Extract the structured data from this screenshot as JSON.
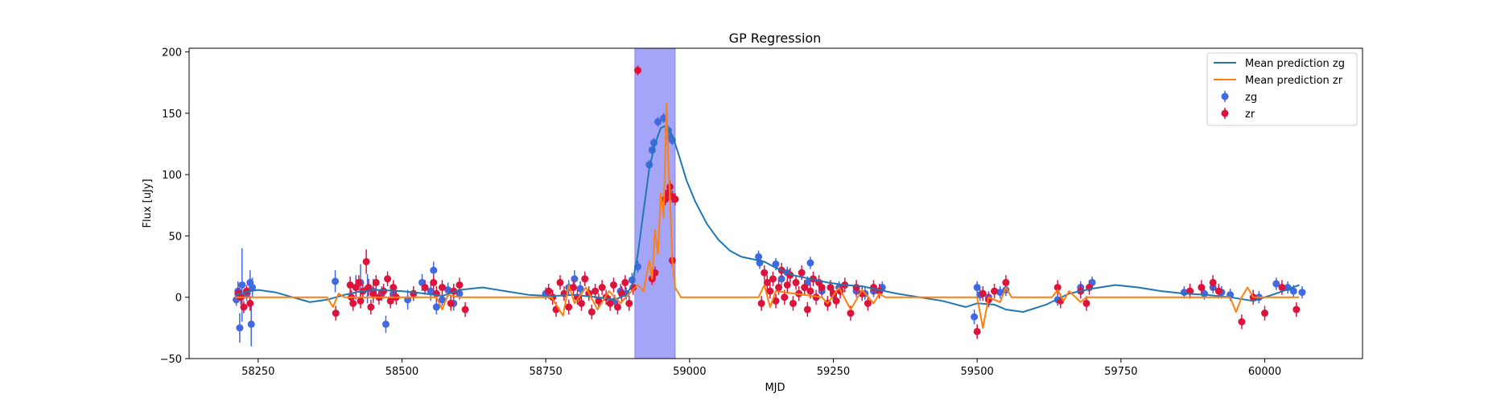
{
  "chart_data": {
    "type": "scatter",
    "title": "GP Regression",
    "xlabel": "MJD",
    "ylabel": "Flux [uJy]",
    "xlim": [
      58130,
      60170
    ],
    "ylim": [
      -50,
      203
    ],
    "xticks": [
      58250,
      58500,
      58750,
      59000,
      59250,
      59500,
      59750,
      60000
    ],
    "yticks": [
      -50,
      0,
      50,
      100,
      150,
      200
    ],
    "grid": false,
    "legend_position": "upper right",
    "shaded_region": {
      "x_start": 58905,
      "x_end": 58975,
      "color": "#a5a5f8"
    },
    "series": [
      {
        "name": "Mean prediction zg",
        "kind": "line",
        "color": "#1f77b4",
        "x": [
          58210,
          58220,
          58235,
          58250,
          58280,
          58310,
          58340,
          58370,
          58400,
          58430,
          58460,
          58500,
          58540,
          58570,
          58600,
          58640,
          58680,
          58720,
          58760,
          58800,
          58840,
          58870,
          58890,
          58900,
          58910,
          58920,
          58930,
          58940,
          58950,
          58960,
          58970,
          58980,
          58995,
          59010,
          59030,
          59050,
          59070,
          59090,
          59110,
          59130,
          59150,
          59180,
          59210,
          59240,
          59270,
          59300,
          59330,
          59360,
          59400,
          59440,
          59480,
          59500,
          59530,
          59550,
          59580,
          59620,
          59660,
          59700,
          59740,
          59780,
          59820,
          59860,
          59900,
          59940,
          59980,
          60020,
          60060
        ],
        "y": [
          2,
          3,
          5,
          6,
          4,
          0,
          -4,
          -2,
          2,
          5,
          6,
          5,
          3,
          1,
          6,
          8,
          5,
          2,
          1,
          2,
          0,
          -2,
          2,
          10,
          35,
          70,
          105,
          125,
          138,
          140,
          132,
          118,
          95,
          78,
          60,
          47,
          38,
          33,
          31,
          29,
          24,
          18,
          15,
          12,
          10,
          9,
          6,
          3,
          0,
          -3,
          -8,
          -5,
          -6,
          -10,
          -12,
          -6,
          3,
          7,
          10,
          8,
          5,
          3,
          2,
          0,
          -3,
          3,
          10
        ]
      },
      {
        "name": "Mean prediction zr",
        "kind": "line",
        "color": "#ff7f0e",
        "x": [
          58210,
          58240,
          58370,
          58380,
          58390,
          58400,
          58560,
          58570,
          58580,
          58600,
          58760,
          58780,
          58790,
          58800,
          58820,
          58840,
          58860,
          58880,
          58895,
          58910,
          58920,
          58930,
          58935,
          58940,
          58945,
          58950,
          58955,
          58960,
          58963,
          58966,
          58970,
          58975,
          58985,
          58995,
          59010,
          59120,
          59130,
          59140,
          59150,
          59230,
          59240,
          59260,
          59280,
          59300,
          59320,
          59330,
          59340,
          59360,
          59500,
          59510,
          59520,
          59540,
          59550,
          59560,
          59630,
          59640,
          59650,
          59660,
          59680,
          59690,
          59700,
          59940,
          59950,
          59960,
          59970,
          59980,
          60060
        ],
        "y": [
          0,
          0,
          0,
          -8,
          3,
          0,
          0,
          -10,
          2,
          0,
          0,
          -15,
          10,
          -5,
          8,
          -10,
          5,
          -5,
          3,
          10,
          5,
          30,
          15,
          55,
          35,
          85,
          65,
          158,
          110,
          80,
          30,
          8,
          0,
          0,
          0,
          0,
          10,
          -8,
          5,
          0,
          -5,
          8,
          -10,
          6,
          -5,
          3,
          0,
          0,
          0,
          -25,
          0,
          -4,
          8,
          0,
          0,
          6,
          -3,
          5,
          -4,
          0,
          0,
          0,
          -12,
          0,
          8,
          0,
          0
        ]
      },
      {
        "name": "zg",
        "kind": "errorbar",
        "color": "#4169e1",
        "x": [
          58212,
          58215,
          58218,
          58222,
          58230,
          58236,
          58238,
          58240,
          58384,
          58420,
          58428,
          58440,
          58450,
          58465,
          58472,
          58485,
          58510,
          58535,
          58550,
          58555,
          58560,
          58570,
          58580,
          58590,
          58600,
          58750,
          58790,
          58800,
          58810,
          58870,
          58880,
          58890,
          58900,
          58910,
          58930,
          58935,
          58938,
          58945,
          58955,
          58963,
          58966,
          58970,
          59120,
          59122,
          59150,
          59160,
          59170,
          59200,
          59205,
          59210,
          59230,
          59250,
          59260,
          59290,
          59305,
          59320,
          59335,
          59495,
          59500,
          59505,
          59520,
          59540,
          59550,
          59640,
          59680,
          59700,
          59860,
          59870,
          59895,
          59910,
          59925,
          59940,
          59990,
          60020,
          60040,
          60050,
          60065
        ],
        "y": [
          -2,
          5,
          -25,
          10,
          2,
          12,
          -22,
          8,
          13,
          8,
          12,
          7,
          5,
          3,
          -22,
          3,
          -2,
          12,
          5,
          22,
          -8,
          -2,
          6,
          -5,
          3,
          3,
          8,
          15,
          7,
          -3,
          5,
          3,
          14,
          25,
          108,
          120,
          126,
          143,
          146,
          136,
          130,
          128,
          33,
          28,
          27,
          15,
          20,
          8,
          12,
          28,
          5,
          2,
          8,
          5,
          3,
          5,
          8,
          -16,
          8,
          2,
          0,
          4,
          6,
          -2,
          8,
          12,
          4,
          5,
          3,
          8,
          4,
          2,
          0,
          11,
          8,
          5,
          4
        ],
        "yerr": [
          5,
          8,
          12,
          30,
          5,
          10,
          18,
          8,
          9,
          10,
          15,
          12,
          10,
          6,
          7,
          8,
          8,
          7,
          8,
          7,
          6,
          5,
          6,
          6,
          5,
          5,
          6,
          7,
          6,
          5,
          6,
          5,
          6,
          5,
          4,
          4,
          4,
          4,
          4,
          4,
          4,
          4,
          5,
          5,
          5,
          5,
          5,
          5,
          5,
          5,
          5,
          5,
          5,
          5,
          5,
          5,
          5,
          6,
          5,
          5,
          5,
          5,
          5,
          5,
          5,
          5,
          5,
          5,
          5,
          5,
          5,
          5,
          5,
          5,
          5,
          5,
          5
        ]
      },
      {
        "name": "zr",
        "kind": "errorbar",
        "color": "#dc143c",
        "x": [
          58215,
          58220,
          58225,
          58230,
          58236,
          58385,
          58410,
          58412,
          58415,
          58420,
          58425,
          58428,
          58432,
          58438,
          58442,
          58446,
          58450,
          58455,
          58460,
          58468,
          58475,
          58480,
          58485,
          58490,
          58520,
          58540,
          58555,
          58560,
          58570,
          58585,
          58590,
          58600,
          58610,
          58755,
          58762,
          58768,
          58775,
          58782,
          58790,
          58798,
          58805,
          58812,
          58818,
          58825,
          58830,
          58836,
          58842,
          58848,
          58855,
          58862,
          58868,
          58875,
          58882,
          58888,
          58895,
          58902,
          58910,
          58935,
          58940,
          58958,
          58962,
          58966,
          58970,
          58975,
          58970,
          59125,
          59130,
          59135,
          59140,
          59145,
          59150,
          59155,
          59160,
          59165,
          59170,
          59175,
          59180,
          59185,
          59190,
          59195,
          59200,
          59205,
          59210,
          59215,
          59220,
          59225,
          59230,
          59240,
          59245,
          59250,
          59255,
          59262,
          59270,
          59280,
          59290,
          59300,
          59310,
          59320,
          59330,
          59500,
          59510,
          59520,
          59530,
          59550,
          59640,
          59645,
          59680,
          59690,
          59695,
          59870,
          59890,
          59910,
          59920,
          59960,
          59980,
          60000,
          60030,
          60055
        ],
        "y": [
          3,
          0,
          -8,
          5,
          -5,
          -13,
          10,
          0,
          -5,
          8,
          12,
          -3,
          5,
          29,
          8,
          -8,
          3,
          12,
          0,
          5,
          15,
          -3,
          8,
          0,
          3,
          8,
          12,
          3,
          8,
          -5,
          5,
          10,
          -10,
          5,
          0,
          -10,
          12,
          3,
          -8,
          8,
          0,
          -5,
          15,
          3,
          -12,
          5,
          -3,
          8,
          0,
          -5,
          10,
          -8,
          3,
          12,
          -5,
          8,
          185,
          15,
          20,
          80,
          85,
          90,
          82,
          80,
          30,
          -5,
          20,
          12,
          5,
          15,
          -3,
          8,
          22,
          0,
          10,
          18,
          -5,
          12,
          3,
          20,
          8,
          -10,
          5,
          15,
          0,
          12,
          8,
          -5,
          8,
          3,
          -3,
          5,
          10,
          -13,
          8,
          3,
          -5,
          8,
          5,
          -28,
          3,
          -2,
          5,
          12,
          8,
          -3,
          5,
          -5,
          8,
          5,
          8,
          12,
          5,
          -20,
          0,
          -13,
          8,
          -10
        ],
        "yerr": [
          5,
          6,
          5,
          5,
          6,
          6,
          7,
          6,
          6,
          7,
          6,
          6,
          6,
          10,
          7,
          6,
          6,
          6,
          6,
          6,
          6,
          6,
          6,
          6,
          6,
          6,
          6,
          6,
          6,
          6,
          6,
          6,
          6,
          6,
          6,
          6,
          6,
          6,
          6,
          6,
          6,
          6,
          6,
          6,
          6,
          6,
          6,
          6,
          6,
          6,
          6,
          6,
          6,
          6,
          6,
          6,
          4,
          5,
          5,
          5,
          5,
          5,
          5,
          5,
          5,
          6,
          6,
          6,
          6,
          6,
          6,
          6,
          6,
          6,
          6,
          6,
          6,
          6,
          6,
          6,
          6,
          6,
          6,
          6,
          6,
          6,
          6,
          6,
          6,
          6,
          6,
          6,
          6,
          6,
          6,
          6,
          6,
          6,
          6,
          6,
          6,
          6,
          6,
          6,
          6,
          6,
          6,
          6,
          6,
          6,
          6,
          6,
          6,
          6,
          6,
          6,
          6,
          6
        ]
      }
    ]
  }
}
